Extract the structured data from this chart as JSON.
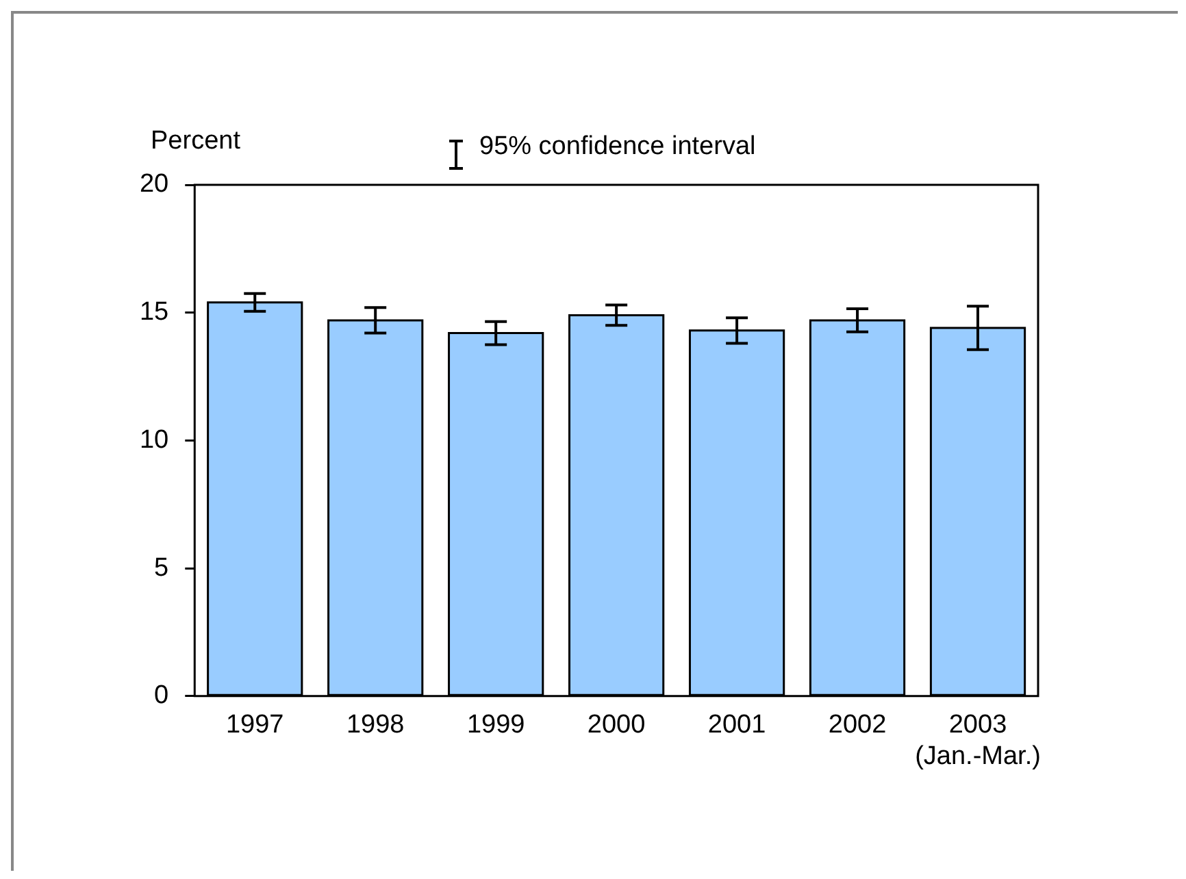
{
  "chart_data": {
    "type": "bar",
    "ylabel": "Percent",
    "categories": [
      "1997",
      "1998",
      "1999",
      "2000",
      "2001",
      "2002",
      "2003 (Jan.-Mar.)"
    ],
    "values": [
      15.4,
      14.7,
      14.2,
      14.9,
      14.3,
      14.7,
      14.4
    ],
    "errors": [
      0.35,
      0.5,
      0.45,
      0.4,
      0.5,
      0.45,
      0.85
    ],
    "color": "#99ccff",
    "ylim": [
      0,
      20
    ],
    "yticks": [
      0,
      5,
      10,
      15,
      20
    ],
    "grid": false,
    "legend": false,
    "annotations": [
      "95% confidence interval"
    ]
  }
}
